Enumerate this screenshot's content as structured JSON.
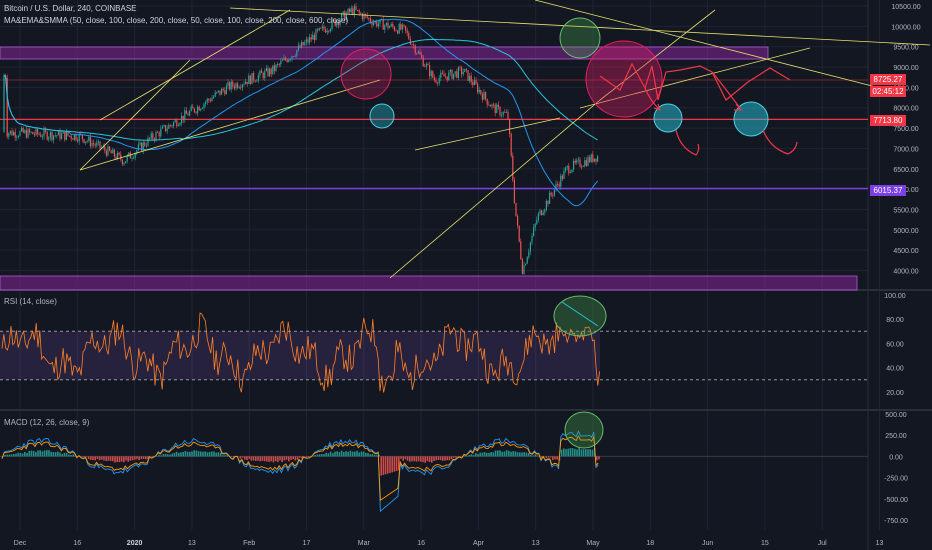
{
  "header": {
    "symbol_line": "Bitcoin / U.S. Dollar, 240, COINBASE",
    "indicator_line": "MA&EMA&SMMA (50, close, 100, close, 200, close, 50, close, 100, close, 200, close, 600, close)"
  },
  "panes": {
    "rsi_label": "RSI (14, close)",
    "macd_label": "MACD (12, 26, close, 9)"
  },
  "price_tags": [
    {
      "value": "8725.27",
      "color": "#f23645"
    },
    {
      "value": "02:45:12",
      "color": "#f23645"
    },
    {
      "value": "7713.80",
      "color": "#f23645"
    },
    {
      "value": "6015.37",
      "color": "#7b3fe4"
    }
  ],
  "colors": {
    "background": "#131722",
    "candle_up": "#26a69a",
    "candle_down": "#ef5350",
    "rsi_line": "#ff7f27",
    "macd_line": "#2196f3",
    "signal_line": "#ff9800",
    "zone": "#9c27b0"
  },
  "chart_data": [
    {
      "type": "line",
      "name": "price",
      "x": [
        "Dec",
        "16",
        "2020",
        "13",
        "Feb",
        "17",
        "Mar",
        "16",
        "Apr",
        "13",
        "May",
        "18",
        "Jun",
        "15",
        "Jul",
        "13"
      ],
      "price_axis_ticks": [
        10500,
        10000,
        9500,
        9000,
        8500,
        8000,
        7500,
        7000,
        6500,
        6000,
        5500,
        5000,
        4500,
        4000
      ],
      "ylim": [
        3700,
        10600
      ],
      "price_path": [
        [
          0,
          7400
        ],
        [
          10,
          7300
        ],
        [
          16,
          6700
        ],
        [
          20,
          7300
        ],
        [
          30,
          8500
        ],
        [
          36,
          8900
        ],
        [
          42,
          9800
        ],
        [
          47,
          10400
        ],
        [
          50,
          10100
        ],
        [
          54,
          9900
        ],
        [
          58,
          8700
        ],
        [
          62,
          8900
        ],
        [
          66,
          8000
        ],
        [
          68,
          7800
        ],
        [
          69,
          5500
        ],
        [
          70,
          4000
        ],
        [
          72,
          5300
        ],
        [
          76,
          6500
        ],
        [
          80,
          6800
        ],
        [
          86,
          7000
        ],
        [
          92,
          7600
        ],
        [
          96,
          8800
        ],
        [
          98,
          9900
        ],
        [
          100,
          9500
        ],
        [
          101,
          8800
        ]
      ],
      "levels": [
        7713.8,
        6015.37
      ],
      "projection": "down"
    },
    {
      "type": "line",
      "name": "RSI",
      "ylim": [
        0,
        100
      ],
      "y_ticks": [
        100,
        80,
        60,
        40,
        20
      ],
      "bands": [
        70,
        30
      ]
    },
    {
      "type": "bar",
      "name": "MACD",
      "ylim": [
        -850,
        550
      ],
      "y_ticks": [
        500,
        250,
        0,
        -250,
        -500,
        -750
      ]
    }
  ]
}
